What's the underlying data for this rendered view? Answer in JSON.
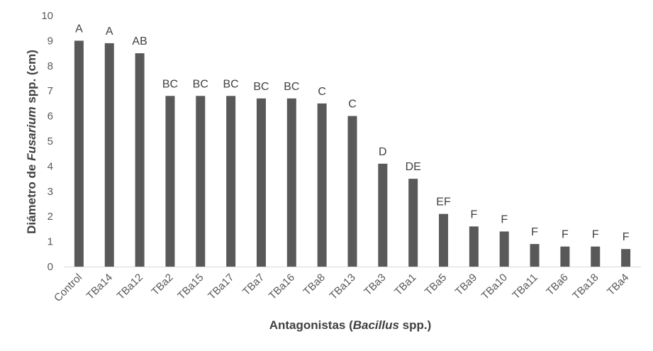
{
  "chart_data": {
    "type": "bar",
    "categories": [
      "Control",
      "TBa14",
      "TBa12",
      "TBa2",
      "TBa15",
      "TBa17",
      "TBa7",
      "TBa16",
      "TBa8",
      "TBa13",
      "TBa3",
      "TBa1",
      "TBa5",
      "TBa9",
      "TBa10",
      "TBa11",
      "TBa6",
      "TBa18",
      "TBa4"
    ],
    "values": [
      9.0,
      8.9,
      8.5,
      6.8,
      6.8,
      6.8,
      6.7,
      6.7,
      6.5,
      6.0,
      4.1,
      3.5,
      2.1,
      1.6,
      1.4,
      0.9,
      0.8,
      0.8,
      0.7
    ],
    "data_labels": [
      "A",
      "A",
      "AB",
      "BC",
      "BC",
      "BC",
      "BC",
      "BC",
      "C",
      "C",
      "D",
      "DE",
      "EF",
      "F",
      "F",
      "F",
      "F",
      "F",
      "F"
    ],
    "xlabel": {
      "pre": "Antagonistas (",
      "italic": "Bacillus",
      "post": " spp.)"
    },
    "ylabel": {
      "pre": "Diámetro de ",
      "italic": "Fusarium",
      "post": " spp. (cm)"
    },
    "ylim": [
      0,
      10
    ],
    "yticks": [
      0,
      1,
      2,
      3,
      4,
      5,
      6,
      7,
      8,
      9,
      10
    ],
    "grid": false,
    "colors": {
      "bar": "#595959",
      "axis": "#d9d9d9"
    }
  }
}
